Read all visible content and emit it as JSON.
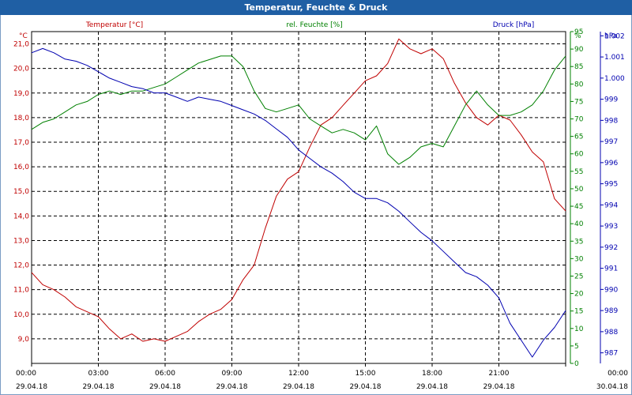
{
  "window": {
    "title": "Temperatur, Feuchte & Druck"
  },
  "colors": {
    "temperature": "#c00000",
    "humidity": "#008000",
    "pressure": "#0000b0",
    "titlebar": "#1f5fa4",
    "grid": "#000000"
  },
  "chart_data": {
    "type": "line",
    "title": "Temperatur, Feuchte & Druck",
    "grid": true,
    "x_axis": {
      "range": [
        "29.04.18 00:00",
        "30.04.18 00:00"
      ],
      "ticks": [
        {
          "time": "00:00",
          "date": "29.04.18"
        },
        {
          "time": "03:00",
          "date": "29.04.18"
        },
        {
          "time": "06:00",
          "date": "29.04.18"
        },
        {
          "time": "09:00",
          "date": "29.04.18"
        },
        {
          "time": "12:00",
          "date": "29.04.18"
        },
        {
          "time": "15:00",
          "date": "29.04.18"
        },
        {
          "time": "18:00",
          "date": "29.04.18"
        },
        {
          "time": "21:00",
          "date": "29.04.18"
        },
        {
          "time": "00:00",
          "date": "30.04.18"
        }
      ]
    },
    "axes": {
      "temperature": {
        "label": "Temperatur [°C]",
        "unit": "°C",
        "range": [
          8.0,
          21.5
        ],
        "ticks": [
          "9,0",
          "10,0",
          "11,0",
          "12,0",
          "13,0",
          "14,0",
          "15,0",
          "16,0",
          "17,0",
          "18,0",
          "19,0",
          "20,0",
          "21,0"
        ]
      },
      "humidity": {
        "label": "rel. Feuchte [%]",
        "unit": "%",
        "range": [
          0,
          95
        ],
        "ticks": [
          "0",
          "5",
          "10",
          "15",
          "20",
          "25",
          "30",
          "35",
          "40",
          "45",
          "50",
          "55",
          "60",
          "65",
          "70",
          "75",
          "80",
          "85",
          "90",
          "95"
        ]
      },
      "pressure": {
        "label": "Druck [hPa]",
        "unit": "hPa",
        "range": [
          986.5,
          1002.2
        ],
        "ticks": [
          "987",
          "988",
          "989",
          "990",
          "991",
          "992",
          "993",
          "994",
          "995",
          "996",
          "997",
          "998",
          "999",
          "1.000",
          "1.001",
          "1.002"
        ]
      }
    },
    "hours": [
      0,
      0.5,
      1,
      1.5,
      2,
      2.5,
      3,
      3.5,
      4,
      4.5,
      5,
      5.5,
      6,
      6.5,
      7,
      7.5,
      8,
      8.5,
      9,
      9.5,
      10,
      10.5,
      11,
      11.5,
      12,
      12.5,
      13,
      13.5,
      14,
      14.5,
      15,
      15.5,
      16,
      16.5,
      17,
      17.5,
      18,
      18.5,
      19,
      19.5,
      20,
      20.5,
      21,
      21.5,
      22,
      22.5,
      23,
      23.5,
      24
    ],
    "series": [
      {
        "name": "Temperatur [°C]",
        "axis": "temperature",
        "values": [
          11.7,
          11.2,
          11.0,
          10.7,
          10.3,
          10.1,
          9.9,
          9.4,
          9.0,
          9.2,
          8.9,
          9.0,
          8.9,
          9.1,
          9.3,
          9.7,
          10.0,
          10.2,
          10.6,
          11.4,
          12.0,
          13.5,
          14.8,
          15.5,
          15.8,
          16.8,
          17.7,
          18.0,
          18.5,
          19.0,
          19.5,
          19.7,
          20.2,
          21.2,
          20.8,
          20.6,
          20.8,
          20.4,
          19.4,
          18.6,
          18.0,
          17.7,
          18.1,
          17.9,
          17.3,
          16.6,
          16.2,
          14.7,
          14.2
        ]
      },
      {
        "name": "rel. Feuchte [%]",
        "axis": "humidity",
        "values": [
          67,
          69,
          70,
          72,
          74,
          75,
          77,
          78,
          77,
          78,
          78,
          79,
          80,
          82,
          84,
          86,
          87,
          88,
          88,
          85,
          78,
          73,
          72,
          73,
          74,
          70,
          68,
          66,
          67,
          66,
          64,
          68,
          60,
          57,
          59,
          62,
          63,
          62,
          68,
          74,
          78,
          74,
          71,
          71,
          72,
          74,
          78,
          84,
          88
        ]
      },
      {
        "name": "Druck [hPa]",
        "axis": "pressure",
        "values": [
          1001.2,
          1001.4,
          1001.2,
          1000.9,
          1000.8,
          1000.6,
          1000.3,
          1000.0,
          999.8,
          999.6,
          999.5,
          999.3,
          999.3,
          999.1,
          998.9,
          999.1,
          999.0,
          998.9,
          998.7,
          998.5,
          998.3,
          998.0,
          997.6,
          997.2,
          996.6,
          996.2,
          995.8,
          995.5,
          995.1,
          994.6,
          994.3,
          994.3,
          994.1,
          993.7,
          993.2,
          992.7,
          992.3,
          991.8,
          991.3,
          990.8,
          990.6,
          990.2,
          989.6,
          988.4,
          987.6,
          986.8,
          987.6,
          988.2,
          989.0
        ]
      }
    ]
  }
}
